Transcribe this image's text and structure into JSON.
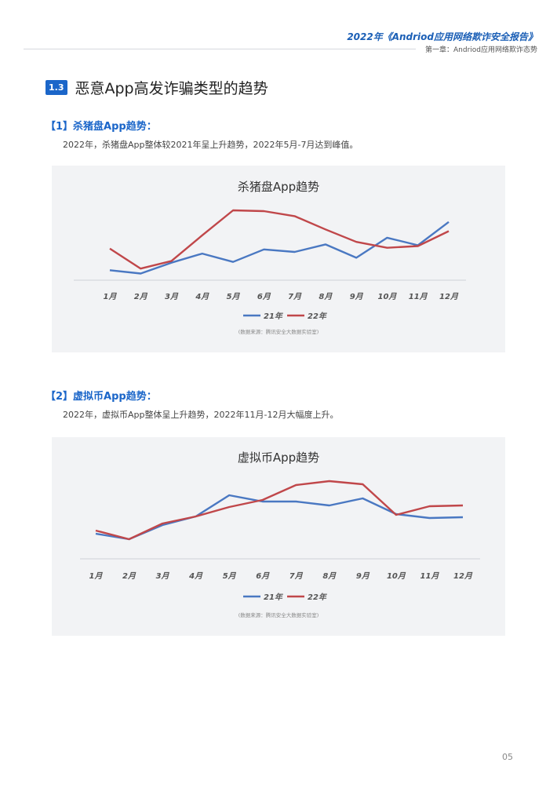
{
  "header": {
    "report_title": "2022年《Andriod应用网络欺诈安全报告》",
    "chapter": "第一章：Andriod应用网络欺诈态势"
  },
  "section": {
    "number": "1.3",
    "title": "恶意App高发诈骗类型的趋势"
  },
  "subsections": [
    {
      "heading": "【1】杀猪盘App趋势：",
      "text": "2022年，杀猪盘App整体较2021年呈上升趋势，2022年5月-7月达到峰值。"
    },
    {
      "heading": "【2】虚拟币App趋势：",
      "text": "2022年，虚拟币App整体呈上升趋势，2022年11月-12月大幅度上升。"
    }
  ],
  "chart_data": [
    {
      "type": "line",
      "title": "杀猪盘App趋势",
      "categories": [
        "1月",
        "2月",
        "3月",
        "4月",
        "5月",
        "6月",
        "7月",
        "8月",
        "9月",
        "10月",
        "11月",
        "12月"
      ],
      "series": [
        {
          "name": "21年",
          "color": "#4a78c2",
          "values": [
            12,
            8,
            21,
            32,
            22,
            37,
            34,
            43,
            27,
            51,
            42,
            70
          ]
        },
        {
          "name": "22年",
          "color": "#c0474a",
          "values": [
            38,
            14,
            23,
            54,
            84,
            83,
            77,
            61,
            46,
            39,
            41,
            59
          ]
        }
      ],
      "ylim": [
        0,
        100
      ],
      "grid": false,
      "legend": "bottom",
      "source": "(数据来源：腾讯安全大数据实验室)"
    },
    {
      "type": "line",
      "title": "虚拟币App趋势",
      "categories": [
        "1月",
        "2月",
        "3月",
        "4月",
        "5月",
        "6月",
        "7月",
        "8月",
        "9月",
        "10月",
        "11月",
        "12月"
      ],
      "series": [
        {
          "name": "21年",
          "color": "#4a78c2",
          "values": [
            27,
            20,
            38,
            49,
            76,
            68,
            68,
            63,
            72,
            52,
            47,
            48
          ]
        },
        {
          "name": "22年",
          "color": "#c0474a",
          "values": [
            31,
            20,
            40,
            49,
            61,
            70,
            89,
            94,
            90,
            51,
            62,
            63
          ]
        }
      ],
      "ylim": [
        0,
        110
      ],
      "grid": false,
      "legend": "bottom",
      "source": "(数据来源：腾讯安全大数据实验室)"
    }
  ],
  "page_number": "05"
}
